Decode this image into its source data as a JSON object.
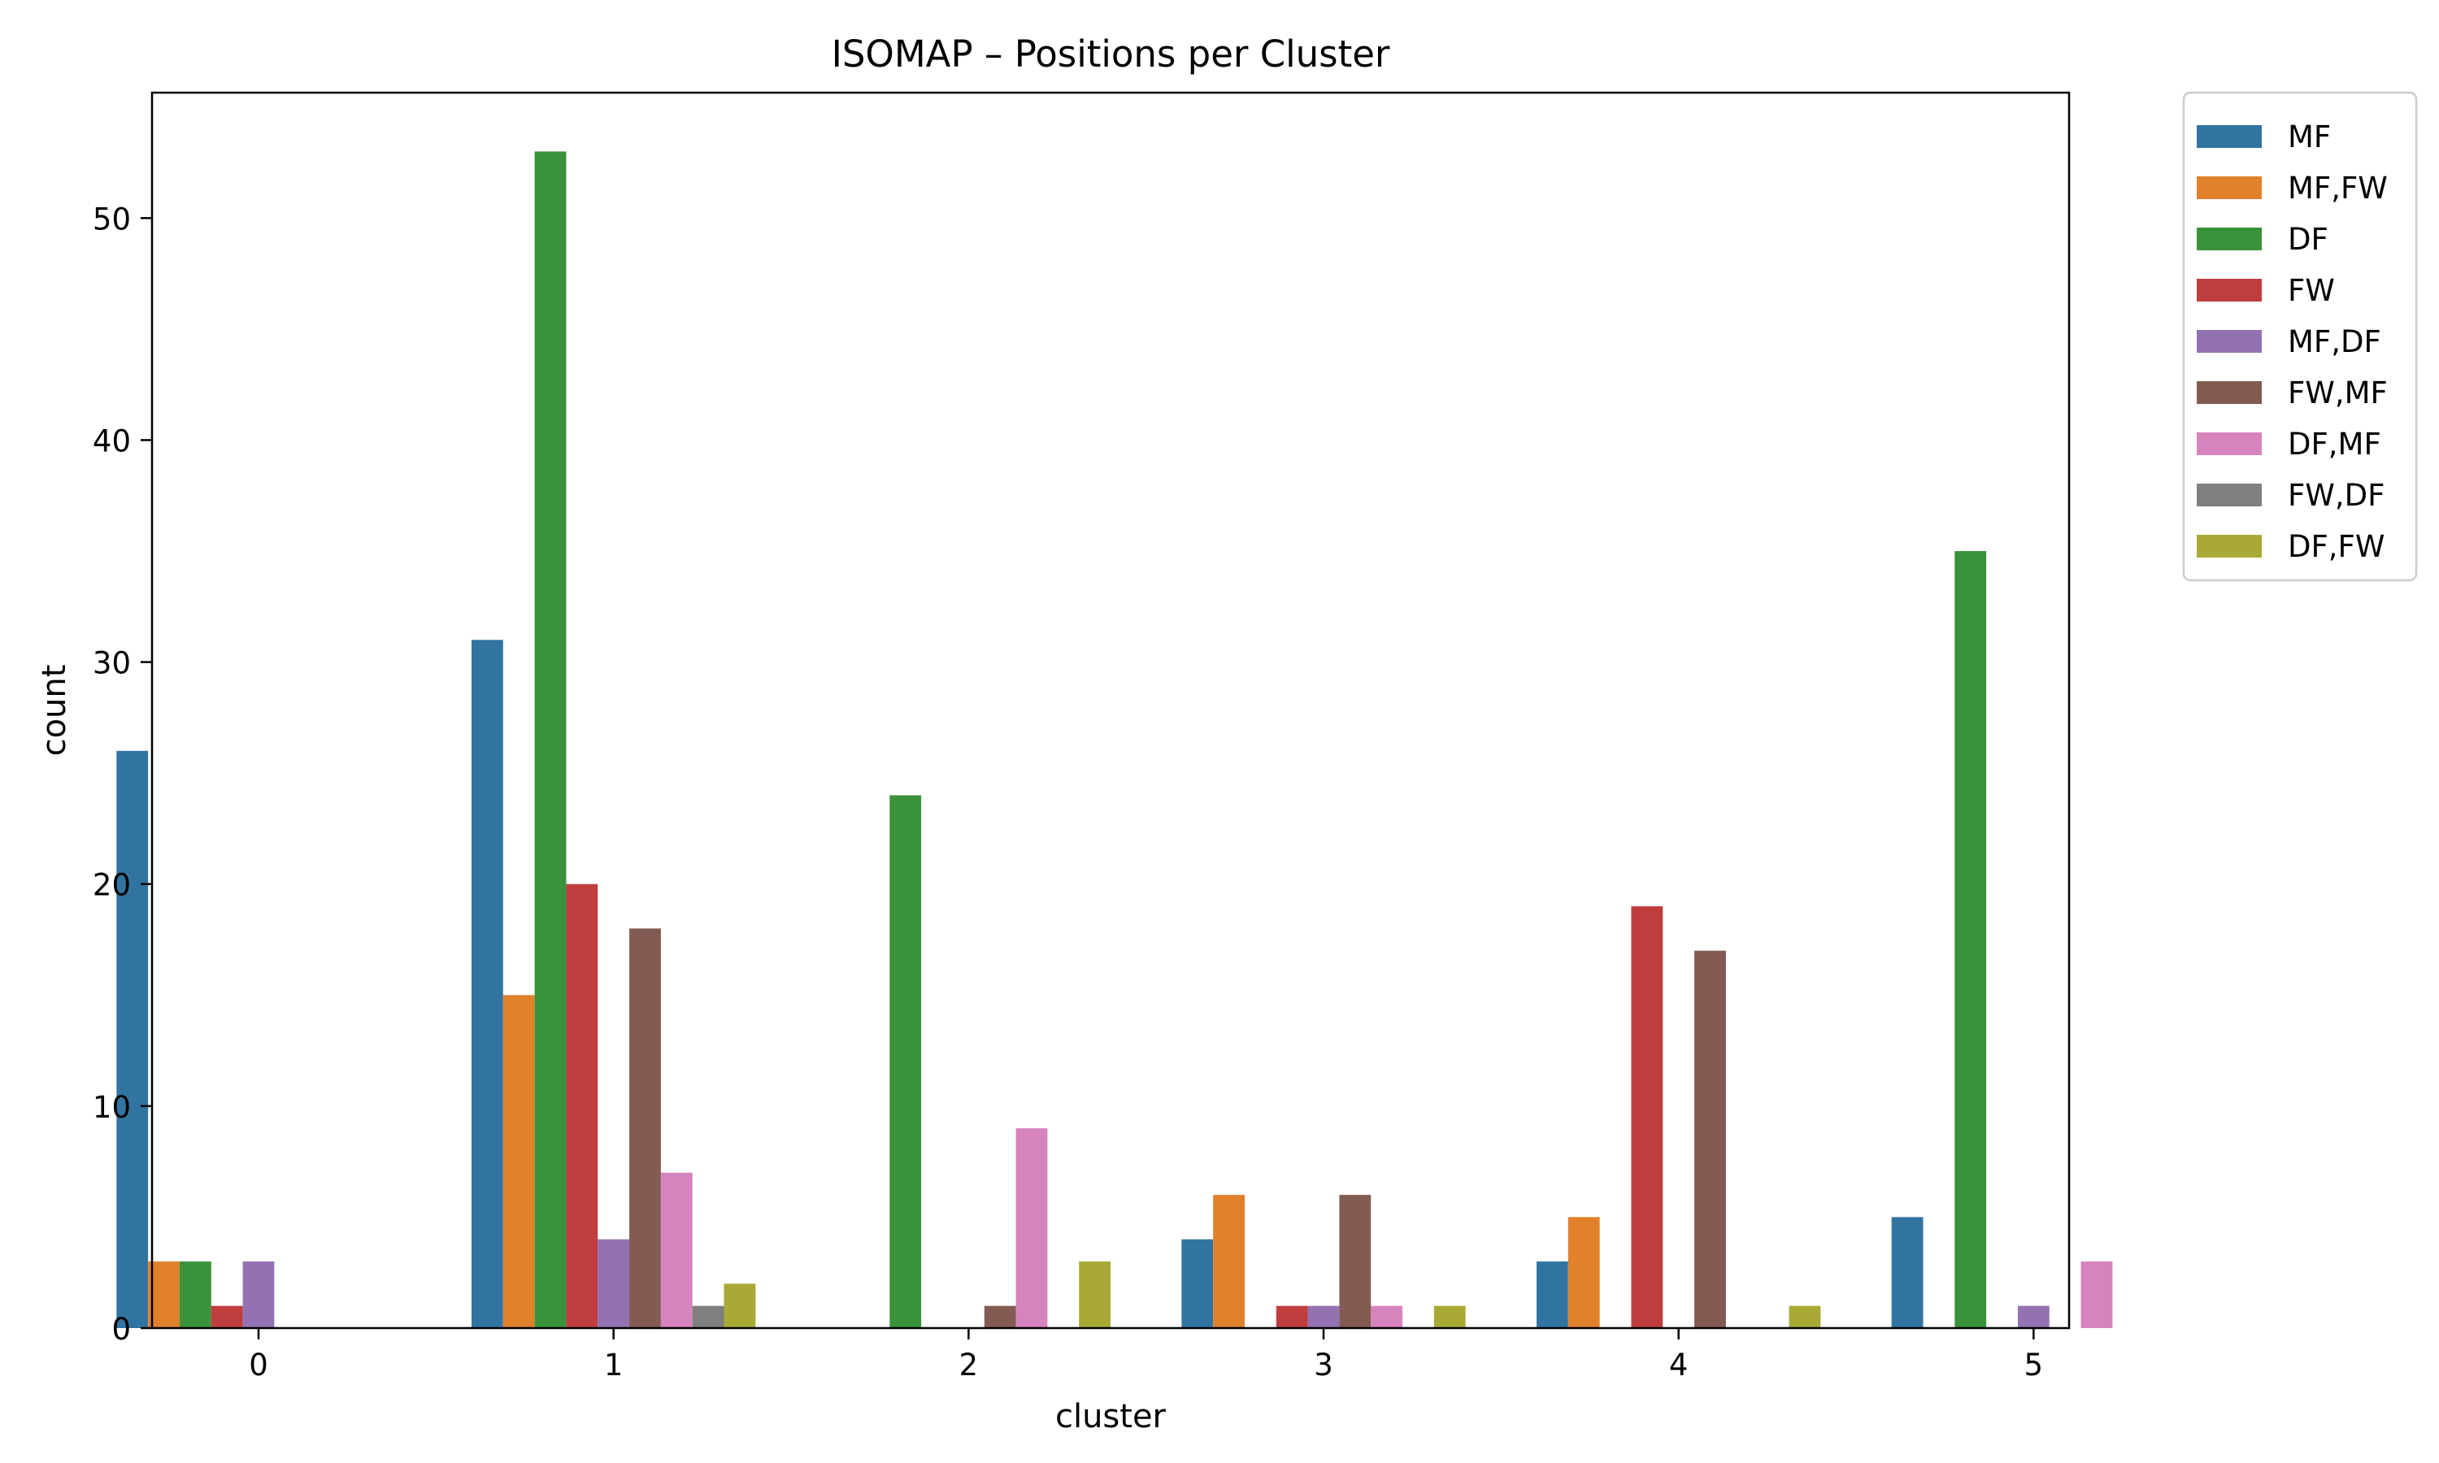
{
  "chart_data": {
    "type": "bar",
    "title": "ISOMAP – Positions per Cluster",
    "xlabel": "cluster",
    "ylabel": "count",
    "categories": [
      "0",
      "1",
      "2",
      "3",
      "4",
      "5"
    ],
    "ylim": [
      0,
      55.65
    ],
    "yticks": [
      0,
      10,
      20,
      30,
      40,
      50
    ],
    "grid": false,
    "legend_position": "outside-top-right",
    "series": [
      {
        "name": "MF",
        "color": "#3274a1",
        "values": [
          26,
          31,
          0,
          4,
          3,
          5
        ]
      },
      {
        "name": "MF,FW",
        "color": "#e1812c",
        "values": [
          3,
          15,
          0,
          6,
          5,
          0
        ]
      },
      {
        "name": "DF",
        "color": "#3a923a",
        "values": [
          3,
          53,
          24,
          0,
          0,
          35
        ]
      },
      {
        "name": "FW",
        "color": "#c03d3e",
        "values": [
          1,
          20,
          0,
          1,
          19,
          0
        ]
      },
      {
        "name": "MF,DF",
        "color": "#9372b2",
        "values": [
          3,
          4,
          0,
          1,
          0,
          1
        ]
      },
      {
        "name": "FW,MF",
        "color": "#845b53",
        "values": [
          0,
          18,
          1,
          6,
          17,
          0
        ]
      },
      {
        "name": "DF,MF",
        "color": "#d684bd",
        "values": [
          0,
          7,
          9,
          1,
          0,
          3
        ]
      },
      {
        "name": "FW,DF",
        "color": "#7f7f7f",
        "values": [
          0,
          1,
          0,
          0,
          0,
          0
        ]
      },
      {
        "name": "DF,FW",
        "color": "#a9aa35",
        "values": [
          0,
          2,
          3,
          1,
          1,
          0
        ]
      }
    ]
  }
}
